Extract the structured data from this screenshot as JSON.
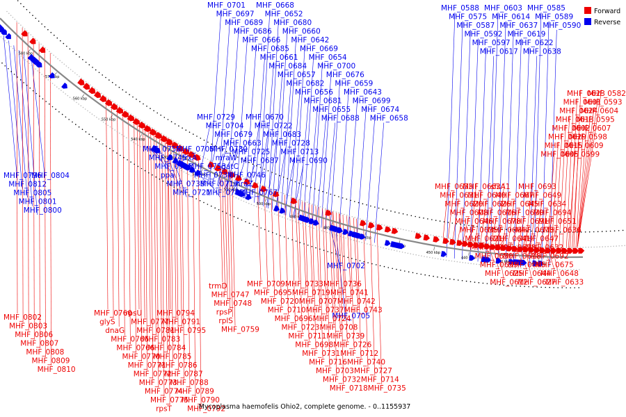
{
  "caption": "Mycoplasma haemofelis Ohio2, complete genome. - 0..1155937",
  "legend": [
    {
      "label": "Forward",
      "color": "#ee0000"
    },
    {
      "label": "Reverse",
      "color": "#0000ee"
    }
  ],
  "colors": {
    "forward": "#ee0000",
    "reverse": "#0000ee",
    "backbone": "#888888"
  },
  "ticks": [
    "420 kbp",
    "430 kbp",
    "440 kbp",
    "450 kbp",
    "460 kbp",
    "470 kbp",
    "480 kbp",
    "490 kbp",
    "500 kbp",
    "510 kbp",
    "520 kbp",
    "530 kbp",
    "540 kbp",
    "550 kbp",
    "560 kbp",
    "570 kbp",
    "580 kbp"
  ],
  "reverse_labels": [
    "MHF_0701",
    "MHF_0697",
    "MHF_0689",
    "MHF_0686",
    "MHF_0666",
    "MHF_0685",
    "MHF_0661",
    "MHF_0684",
    "MHF_0657",
    "MHF_0682",
    "MHF_0656",
    "MHF_0681",
    "MHF_0655",
    "MHF_0688",
    "MHF_0668",
    "MHF_0652",
    "MHF_0680",
    "MHF_0660",
    "MHF_0642",
    "MHF_0669",
    "MHF_0654",
    "MHF_0700",
    "MHF_0676",
    "MHF_0659",
    "MHF_0643",
    "MHF_0699",
    "MHF_0674",
    "MHF_0658",
    "MHF_0729",
    "MHF_0704",
    "MHF_0679",
    "MHF_0663",
    "MHF_0725",
    "MHF_0687",
    "MHF_0670",
    "MHF_0722",
    "MHF_0683",
    "MHF_0728",
    "MHF_0713",
    "MHF_0690",
    "MHF_0756",
    "MHF_0745",
    "MHF_0715",
    "ppa",
    "MHF_0738",
    "MHF_0721",
    "MHF_0706",
    "trxA",
    "MHF_0753",
    "MHF_0734",
    "MHF_0717",
    "MHF_0752",
    "MHF_0730",
    "mraW",
    "gatC",
    "MHF_0746",
    "mraZ",
    "MHF_0767",
    "MHF_0796",
    "MHF_0812",
    "MHF_0805",
    "MHF_0801",
    "MHF_0800",
    "MHF_0804",
    "MHF_0588",
    "MHF_0575",
    "MHF_0587",
    "MHF_0592",
    "MHF_0597",
    "MHF_0617",
    "MHF_0603",
    "MHF_0614",
    "MHF_0637",
    "MHF_0619",
    "MHF_0622",
    "MHF_0638",
    "MHF_0585",
    "MHF_0589",
    "MHF_0590",
    "MHF_0702",
    "MHF_0705"
  ],
  "forward_labels": [
    "MHF_0582",
    "MHF_0593",
    "MHF_0604",
    "MHF_0595",
    "MHF_0607",
    "MHF_0598",
    "MHF_0609",
    "MHF_0599",
    "MHF_0623",
    "MHF_0601",
    "MHF_0624",
    "MHF_0613",
    "MHF_0602",
    "MHF_0629",
    "MHF_0615",
    "MHF_0605",
    "MHF_0653",
    "MHF_0631",
    "MHF_0620",
    "MHF_0608",
    "MHF_0646",
    "MHF_0635",
    "MHF_0621",
    "MHF_0610",
    "MHF_0650",
    "MHF_0639",
    "MHF_0625",
    "MHF_0612",
    "MHF_0662",
    "MHF_0640",
    "MHF_0626",
    "MHF_0616",
    "MHF_0678",
    "MHF_0664",
    "MHF_0641",
    "MHF_0628",
    "MHF_0618",
    "MHF_0665",
    "MHF_0644",
    "MHF_0627",
    "sfsA1",
    "MHF_0667",
    "MHF_0645",
    "MHF_0630",
    "MHF_0691",
    "MHF_0673",
    "MHF_0647",
    "MHF_0632",
    "MHF_0692",
    "MHF_0675",
    "MHF_0648",
    "MHF_0633",
    "MHF_0693",
    "MHF_0649",
    "MHF_0634",
    "MHF_0694",
    "MHF_0651",
    "MHF_0636",
    "MHF_0709",
    "MHF_0695",
    "MHF_0720",
    "MHF_0710",
    "MHF_0696",
    "MHF_0723",
    "MHF_0711",
    "MHF_0698",
    "MHF_0731",
    "MHF_0716",
    "MHF_0703",
    "MHF_0732",
    "MHF_0718",
    "MHF_0733",
    "MHF_0719",
    "MHF_0707",
    "MHF_0737",
    "MHF_0724",
    "MHF_0708",
    "MHF_0739",
    "MHF_0726",
    "MHF_0712",
    "MHF_0740",
    "MHF_0727",
    "MHF_0714",
    "MHF_0735",
    "MHF_0736",
    "MHF_0741",
    "MHF_0742",
    "MHF_0743",
    "trmD",
    "MHF_0747",
    "MHF_0748",
    "rpsP",
    "rplS",
    "MHF_0759",
    "MHF_0760",
    "glyS",
    "dnaG",
    "MHF_0765",
    "MHF_0766",
    "MHF_0770",
    "MHF_0771",
    "MHF_0772",
    "MHF_0773",
    "MHF_0774",
    "MHF_0775",
    "rpsT",
    "rpsU",
    "MHF_0777",
    "MHF_0781",
    "MHF_0783",
    "MHF_0784",
    "MHF_0785",
    "MHF_0786",
    "MHF_0787",
    "MHF_0788",
    "MHF_0789",
    "MHF_0790",
    "MHF_0792",
    "MHF_0794",
    "MHF_0791",
    "MHF_0795",
    "MHF_0802",
    "MHF_0803",
    "MHF_0806",
    "MHF_0807",
    "MHF_0808",
    "MHF_0809",
    "MHF_0810"
  ]
}
